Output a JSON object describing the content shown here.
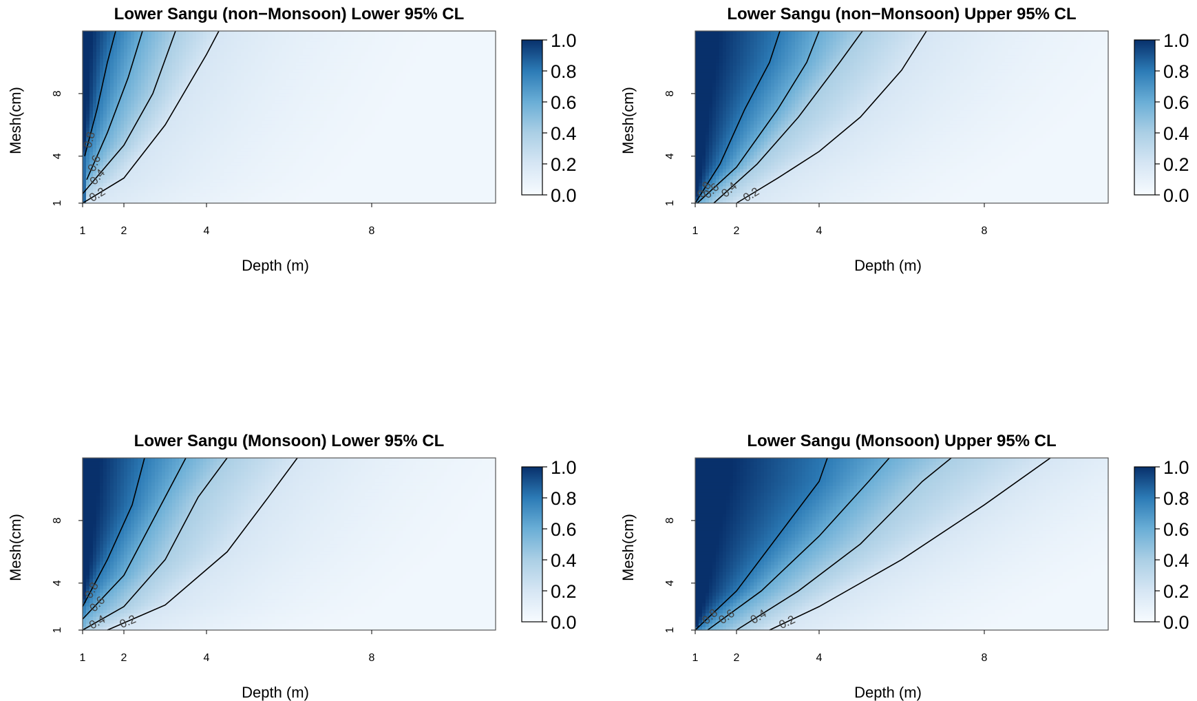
{
  "chart_data": [
    {
      "type": "heatmap",
      "title": "Lower Sangu (non−Monsoon) Lower 95% CL",
      "xlabel": "Depth (m)",
      "ylabel": "Mesh(cm)",
      "xlim": [
        1,
        11
      ],
      "ylim": [
        1,
        12
      ],
      "x_ticks": [
        "1",
        "2",
        "4",
        "8"
      ],
      "y_ticks": [
        "1",
        "4",
        "8"
      ],
      "colorbar": {
        "range": [
          0,
          1
        ],
        "ticks": [
          "0.0",
          "0.2",
          "0.4",
          "0.6",
          "0.8",
          "1.0"
        ]
      },
      "contours": [
        {
          "level": 0.2,
          "label": "0.2",
          "points": [
            [
              1,
              1
            ],
            [
              2,
              2.6
            ],
            [
              3,
              6
            ],
            [
              4,
              10.5
            ],
            [
              4.3,
              12
            ]
          ]
        },
        {
          "level": 0.4,
          "label": "0.4",
          "points": [
            [
              1,
              1.6
            ],
            [
              2,
              4.7
            ],
            [
              2.7,
              8
            ],
            [
              3.25,
              12
            ]
          ]
        },
        {
          "level": 0.6,
          "label": "0.6",
          "points": [
            [
              1.1,
              2.5
            ],
            [
              1.6,
              5.5
            ],
            [
              2.1,
              9
            ],
            [
              2.45,
              12
            ]
          ]
        },
        {
          "level": 0.8,
          "label": "0.8",
          "points": [
            [
              1.05,
              4
            ],
            [
              1.35,
              7
            ],
            [
              1.6,
              10
            ],
            [
              1.8,
              12
            ]
          ]
        }
      ]
    },
    {
      "type": "heatmap",
      "title": "Lower Sangu (non−Monsoon) Upper 95% CL",
      "xlabel": "Depth (m)",
      "ylabel": "Mesh(cm)",
      "xlim": [
        1,
        11
      ],
      "ylim": [
        1,
        12
      ],
      "x_ticks": [
        "1",
        "2",
        "4",
        "8"
      ],
      "y_ticks": [
        "1",
        "4",
        "8"
      ],
      "colorbar": {
        "range": [
          0,
          1
        ],
        "ticks": [
          "0.0",
          "0.2",
          "0.4",
          "0.6",
          "0.8",
          "1.0"
        ]
      },
      "contours": [
        {
          "level": 0.2,
          "label": "0.2",
          "points": [
            [
              2,
              1
            ],
            [
              3,
              2.6
            ],
            [
              4,
              4.3
            ],
            [
              5,
              6.5
            ],
            [
              6,
              9.5
            ],
            [
              6.6,
              12
            ]
          ]
        },
        {
          "level": 0.4,
          "label": "0.4",
          "points": [
            [
              1.45,
              1
            ],
            [
              2.5,
              3.5
            ],
            [
              3.5,
              6.5
            ],
            [
              4.5,
              10
            ],
            [
              5.05,
              12
            ]
          ]
        },
        {
          "level": 0.6,
          "label": "0.6",
          "points": [
            [
              1.05,
              1
            ],
            [
              2,
              3.3
            ],
            [
              3,
              7
            ],
            [
              3.7,
              10
            ],
            [
              4,
              12
            ]
          ]
        },
        {
          "level": 0.8,
          "label": "0.8",
          "points": [
            [
              1,
              1
            ],
            [
              1.6,
              3.5
            ],
            [
              2.2,
              7
            ],
            [
              2.8,
              10
            ],
            [
              3.05,
              12
            ]
          ]
        }
      ]
    },
    {
      "type": "heatmap",
      "title": "Lower Sangu (Monsoon) Lower 95% CL",
      "xlabel": "Depth (m)",
      "ylabel": "Mesh(cm)",
      "xlim": [
        1,
        11
      ],
      "ylim": [
        1,
        12
      ],
      "x_ticks": [
        "1",
        "2",
        "4",
        "8"
      ],
      "y_ticks": [
        "1",
        "4",
        "8"
      ],
      "colorbar": {
        "range": [
          0,
          1
        ],
        "ticks": [
          "0.0",
          "0.2",
          "0.4",
          "0.6",
          "0.8",
          "1.0"
        ]
      },
      "contours": [
        {
          "level": 0.2,
          "label": "0.2",
          "points": [
            [
              1.6,
              1
            ],
            [
              3,
              2.6
            ],
            [
              4.5,
              6
            ],
            [
              5.5,
              9.5
            ],
            [
              6.2,
              12
            ]
          ]
        },
        {
          "level": 0.4,
          "label": "0.4",
          "points": [
            [
              1,
              1
            ],
            [
              2,
              2.5
            ],
            [
              3,
              5.5
            ],
            [
              3.8,
              9.5
            ],
            [
              4.5,
              12
            ]
          ]
        },
        {
          "level": 0.6,
          "label": "0.6",
          "points": [
            [
              1,
              1.7
            ],
            [
              2,
              4.5
            ],
            [
              2.8,
              8.5
            ],
            [
              3.5,
              12
            ]
          ]
        },
        {
          "level": 0.8,
          "label": "0.8",
          "points": [
            [
              1,
              2.5
            ],
            [
              1.6,
              5.5
            ],
            [
              2.2,
              9
            ],
            [
              2.5,
              12
            ]
          ]
        }
      ]
    },
    {
      "type": "heatmap",
      "title": "Lower Sangu (Monsoon) Upper 95% CL",
      "xlabel": "Depth (m)",
      "ylabel": "Mesh(cm)",
      "xlim": [
        1,
        11
      ],
      "ylim": [
        1,
        12
      ],
      "x_ticks": [
        "1",
        "2",
        "4",
        "8"
      ],
      "y_ticks": [
        "1",
        "4",
        "8"
      ],
      "colorbar": {
        "range": [
          0,
          1
        ],
        "ticks": [
          "0.0",
          "0.2",
          "0.4",
          "0.6",
          "0.8",
          "1.0"
        ]
      },
      "contours": [
        {
          "level": 0.2,
          "label": "0.2",
          "points": [
            [
              2.8,
              1
            ],
            [
              4,
              2.5
            ],
            [
              6,
              5.5
            ],
            [
              8,
              9
            ],
            [
              9.6,
              12
            ]
          ]
        },
        {
          "level": 0.4,
          "label": "0.4",
          "points": [
            [
              2,
              1
            ],
            [
              3.5,
              3.5
            ],
            [
              5,
              6.5
            ],
            [
              6.5,
              10.5
            ],
            [
              7.2,
              12
            ]
          ]
        },
        {
          "level": 0.6,
          "label": "0.6",
          "points": [
            [
              1.3,
              1
            ],
            [
              2.6,
              3.5
            ],
            [
              4,
              7
            ],
            [
              5.2,
              10.5
            ],
            [
              5.7,
              12
            ]
          ]
        },
        {
          "level": 0.8,
          "label": "0.8",
          "points": [
            [
              1,
              1
            ],
            [
              2,
              3.5
            ],
            [
              3,
              7
            ],
            [
              4,
              10.5
            ],
            [
              4.2,
              12
            ]
          ]
        }
      ]
    }
  ]
}
